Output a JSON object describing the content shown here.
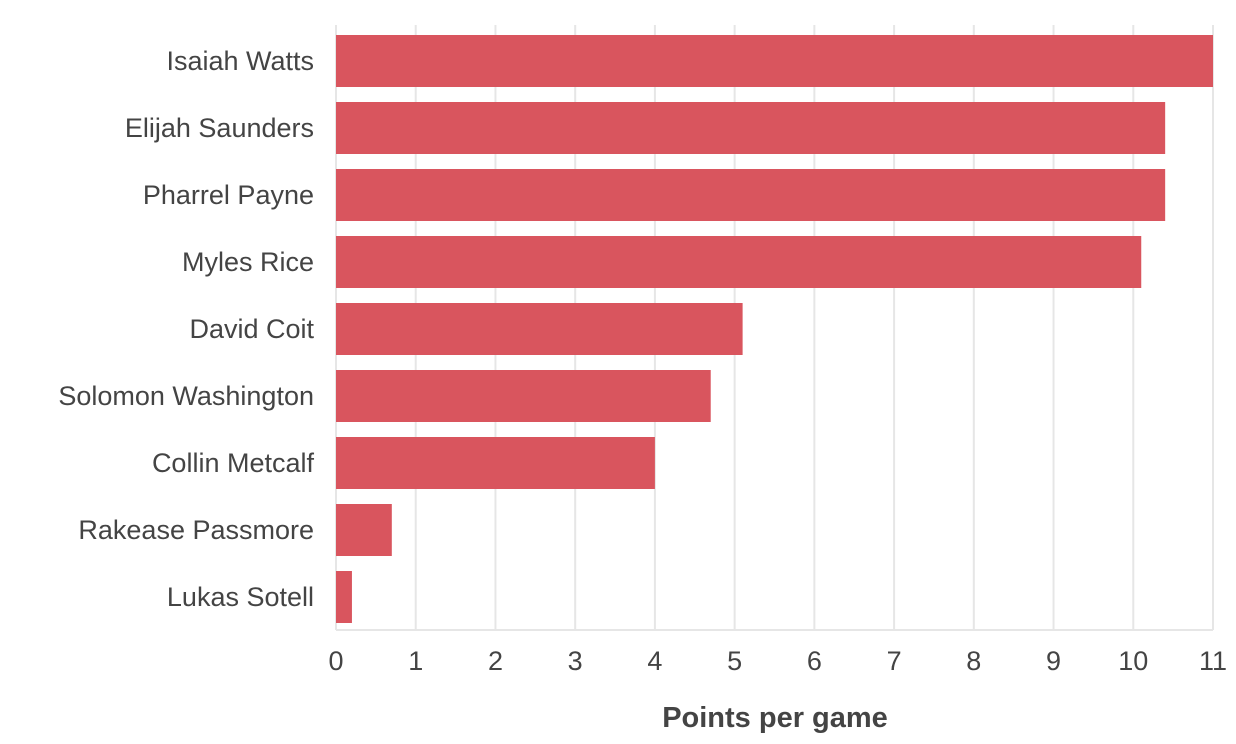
{
  "chart_data": {
    "type": "bar",
    "orientation": "horizontal",
    "categories": [
      "Isaiah Watts",
      "Elijah Saunders",
      "Pharrel Payne",
      "Myles Rice",
      "David Coit",
      "Solomon Washington",
      "Collin Metcalf",
      "Rakease Passmore",
      "Lukas Sotell"
    ],
    "values": [
      11.0,
      10.4,
      10.4,
      10.1,
      5.1,
      4.7,
      4.0,
      0.7,
      0.2
    ],
    "title": "",
    "xlabel": "Points per game",
    "ylabel": "",
    "xlim": [
      0,
      11
    ],
    "xticks": [
      0,
      1,
      2,
      3,
      4,
      5,
      6,
      7,
      8,
      9,
      10,
      11
    ],
    "grid": true,
    "legend": "none",
    "colors": {
      "bar": "#d9555e",
      "grid": "#e6e6e6",
      "text": "#444444"
    }
  }
}
